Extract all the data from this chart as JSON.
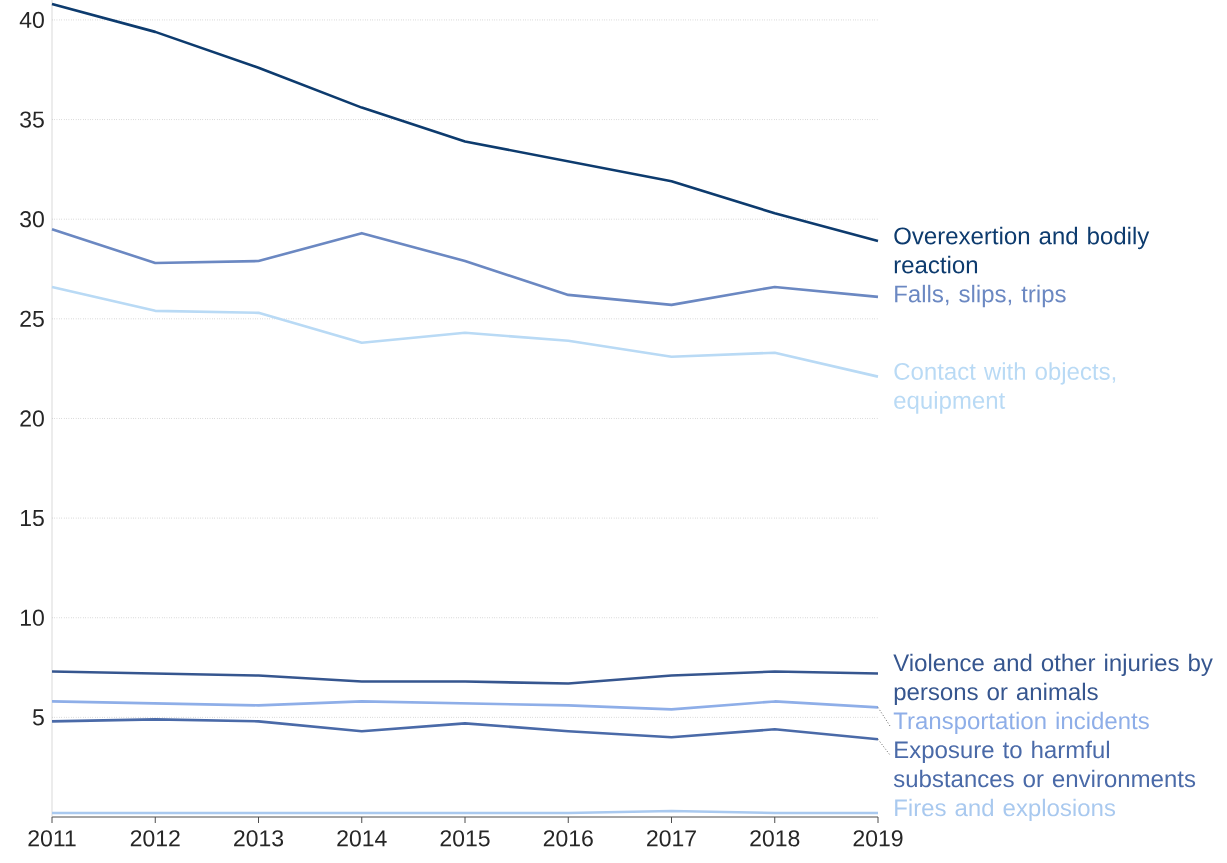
{
  "chart_data": {
    "type": "line",
    "x": [
      2011,
      2012,
      2013,
      2014,
      2015,
      2016,
      2017,
      2018,
      2019
    ],
    "xlim": [
      2011,
      2019
    ],
    "xticks": [
      2011,
      2012,
      2013,
      2014,
      2015,
      2016,
      2017,
      2018,
      2019
    ],
    "ylim": [
      0,
      41
    ],
    "yticks": [
      5,
      10,
      15,
      20,
      25,
      30,
      35,
      40
    ],
    "grid": "y",
    "legend": false,
    "series": [
      {
        "name": "Overexertion and bodily reaction",
        "color": "#0d3b6e",
        "values": [
          40.8,
          39.4,
          37.6,
          35.6,
          33.9,
          32.9,
          31.9,
          30.3,
          28.9
        ]
      },
      {
        "name": "Falls, slips, trips",
        "color": "#6b88c2",
        "values": [
          29.5,
          27.8,
          27.9,
          29.3,
          27.9,
          26.2,
          25.7,
          26.6,
          26.1
        ]
      },
      {
        "name": "Contact with objects, equipment",
        "color": "#b9daf5",
        "values": [
          26.6,
          25.4,
          25.3,
          23.8,
          24.3,
          23.9,
          23.1,
          23.3,
          22.1
        ]
      },
      {
        "name": "Violence and other injuries by persons or animals",
        "color": "#36568f",
        "values": [
          7.3,
          7.2,
          7.1,
          6.8,
          6.8,
          6.7,
          7.1,
          7.3,
          7.2
        ]
      },
      {
        "name": "Transportation incidents",
        "color": "#8eaee8",
        "values": [
          5.8,
          5.7,
          5.6,
          5.8,
          5.7,
          5.6,
          5.4,
          5.8,
          5.5
        ]
      },
      {
        "name": "Exposure to harmful substances or environments",
        "color": "#4a6aa8",
        "values": [
          4.8,
          4.9,
          4.8,
          4.3,
          4.7,
          4.3,
          4.0,
          4.4,
          3.9
        ]
      },
      {
        "name": "Fires and explosions",
        "color": "#a9c9ef",
        "values": [
          0.2,
          0.2,
          0.2,
          0.2,
          0.2,
          0.2,
          0.3,
          0.2,
          0.2
        ]
      }
    ]
  }
}
